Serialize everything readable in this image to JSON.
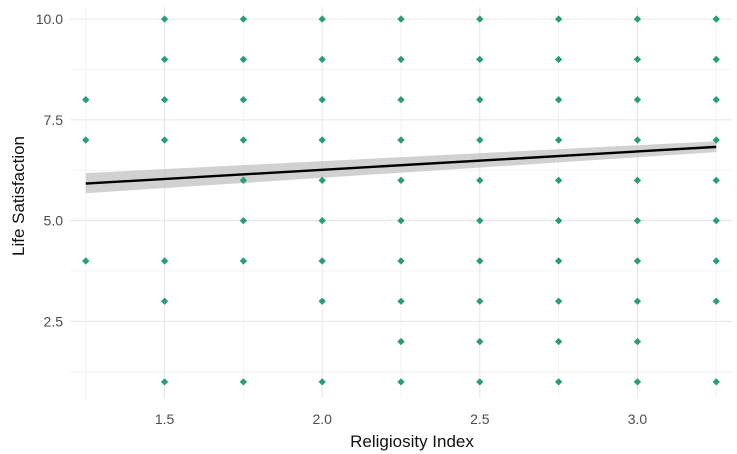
{
  "chart_data": {
    "type": "scatter",
    "title": "",
    "xlabel": "Religiosity Index",
    "ylabel": "Life Satisfaction",
    "xlim": [
      1.2,
      3.3
    ],
    "ylim": [
      0.6,
      10.3
    ],
    "x_ticks": [
      {
        "value": 1.5,
        "label": "1.5"
      },
      {
        "value": 2.0,
        "label": "2.0"
      },
      {
        "value": 2.5,
        "label": "2.5"
      },
      {
        "value": 3.0,
        "label": "3.0"
      }
    ],
    "y_ticks": [
      {
        "value": 2.5,
        "label": "2.5"
      },
      {
        "value": 5.0,
        "label": "5.0"
      },
      {
        "value": 7.5,
        "label": "7.5"
      },
      {
        "value": 10.0,
        "label": "10.0"
      }
    ],
    "grid": true,
    "point_color": "#2a9d77",
    "line_color": "#000000",
    "band_color": "#bfbfbf",
    "points": [
      {
        "x": 1.25,
        "y": 4
      },
      {
        "x": 1.25,
        "y": 7
      },
      {
        "x": 1.25,
        "y": 8
      },
      {
        "x": 1.5,
        "y": 1
      },
      {
        "x": 1.5,
        "y": 3
      },
      {
        "x": 1.5,
        "y": 4
      },
      {
        "x": 1.5,
        "y": 7
      },
      {
        "x": 1.5,
        "y": 8
      },
      {
        "x": 1.5,
        "y": 9
      },
      {
        "x": 1.5,
        "y": 10
      },
      {
        "x": 1.75,
        "y": 1
      },
      {
        "x": 1.75,
        "y": 4
      },
      {
        "x": 1.75,
        "y": 5
      },
      {
        "x": 1.75,
        "y": 6
      },
      {
        "x": 1.75,
        "y": 7
      },
      {
        "x": 1.75,
        "y": 8
      },
      {
        "x": 1.75,
        "y": 9
      },
      {
        "x": 1.75,
        "y": 10
      },
      {
        "x": 2.0,
        "y": 1
      },
      {
        "x": 2.0,
        "y": 3
      },
      {
        "x": 2.0,
        "y": 4
      },
      {
        "x": 2.0,
        "y": 5
      },
      {
        "x": 2.0,
        "y": 6
      },
      {
        "x": 2.0,
        "y": 7
      },
      {
        "x": 2.0,
        "y": 8
      },
      {
        "x": 2.0,
        "y": 9
      },
      {
        "x": 2.0,
        "y": 10
      },
      {
        "x": 2.25,
        "y": 1
      },
      {
        "x": 2.25,
        "y": 2
      },
      {
        "x": 2.25,
        "y": 3
      },
      {
        "x": 2.25,
        "y": 4
      },
      {
        "x": 2.25,
        "y": 5
      },
      {
        "x": 2.25,
        "y": 6
      },
      {
        "x": 2.25,
        "y": 7
      },
      {
        "x": 2.25,
        "y": 8
      },
      {
        "x": 2.25,
        "y": 9
      },
      {
        "x": 2.25,
        "y": 10
      },
      {
        "x": 2.5,
        "y": 1
      },
      {
        "x": 2.5,
        "y": 2
      },
      {
        "x": 2.5,
        "y": 3
      },
      {
        "x": 2.5,
        "y": 4
      },
      {
        "x": 2.5,
        "y": 5
      },
      {
        "x": 2.5,
        "y": 6
      },
      {
        "x": 2.5,
        "y": 7
      },
      {
        "x": 2.5,
        "y": 8
      },
      {
        "x": 2.5,
        "y": 9
      },
      {
        "x": 2.5,
        "y": 10
      },
      {
        "x": 2.75,
        "y": 1
      },
      {
        "x": 2.75,
        "y": 2
      },
      {
        "x": 2.75,
        "y": 3
      },
      {
        "x": 2.75,
        "y": 4
      },
      {
        "x": 2.75,
        "y": 5
      },
      {
        "x": 2.75,
        "y": 6
      },
      {
        "x": 2.75,
        "y": 7
      },
      {
        "x": 2.75,
        "y": 8
      },
      {
        "x": 2.75,
        "y": 9
      },
      {
        "x": 2.75,
        "y": 10
      },
      {
        "x": 3.0,
        "y": 1
      },
      {
        "x": 3.0,
        "y": 2
      },
      {
        "x": 3.0,
        "y": 3
      },
      {
        "x": 3.0,
        "y": 4
      },
      {
        "x": 3.0,
        "y": 5
      },
      {
        "x": 3.0,
        "y": 6
      },
      {
        "x": 3.0,
        "y": 7
      },
      {
        "x": 3.0,
        "y": 8
      },
      {
        "x": 3.0,
        "y": 9
      },
      {
        "x": 3.0,
        "y": 10
      },
      {
        "x": 3.25,
        "y": 1
      },
      {
        "x": 3.25,
        "y": 3
      },
      {
        "x": 3.25,
        "y": 4
      },
      {
        "x": 3.25,
        "y": 5
      },
      {
        "x": 3.25,
        "y": 6
      },
      {
        "x": 3.25,
        "y": 7
      },
      {
        "x": 3.25,
        "y": 8
      },
      {
        "x": 3.25,
        "y": 9
      },
      {
        "x": 3.25,
        "y": 10
      }
    ],
    "regression": {
      "x": [
        1.25,
        3.25
      ],
      "y": [
        5.92,
        6.83
      ],
      "ci_lower": [
        5.68,
        6.7
      ],
      "ci_upper": [
        6.18,
        6.97
      ]
    }
  }
}
